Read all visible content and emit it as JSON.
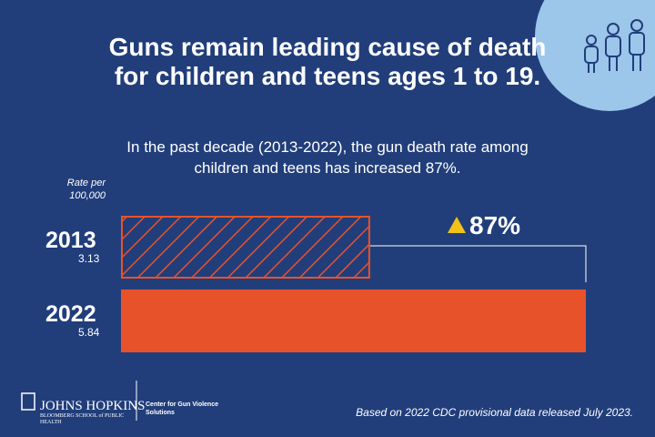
{
  "chart_data": {
    "type": "hbar",
    "title": "Guns remain leading cause of death for children and teens ages 1 to 19.",
    "subtitle": "In the past decade (2013-2022), the gun death rate among children and teens has increased 87%.",
    "axis_label": "Rate per 100,000",
    "categories": [
      "2013",
      "2022"
    ],
    "values": [
      3.13,
      5.84
    ],
    "color": "#e8522a",
    "hatch": [
      true,
      false
    ],
    "annotation": "87%",
    "source": "Based on 2022 CDC provisional data released July 2023."
  },
  "footer": {
    "org": "JOHNS HOPKINS",
    "school": "BLOOMBERG SCHOOL of PUBLIC HEALTH",
    "center": "Center for Gun Violence Solutions"
  }
}
